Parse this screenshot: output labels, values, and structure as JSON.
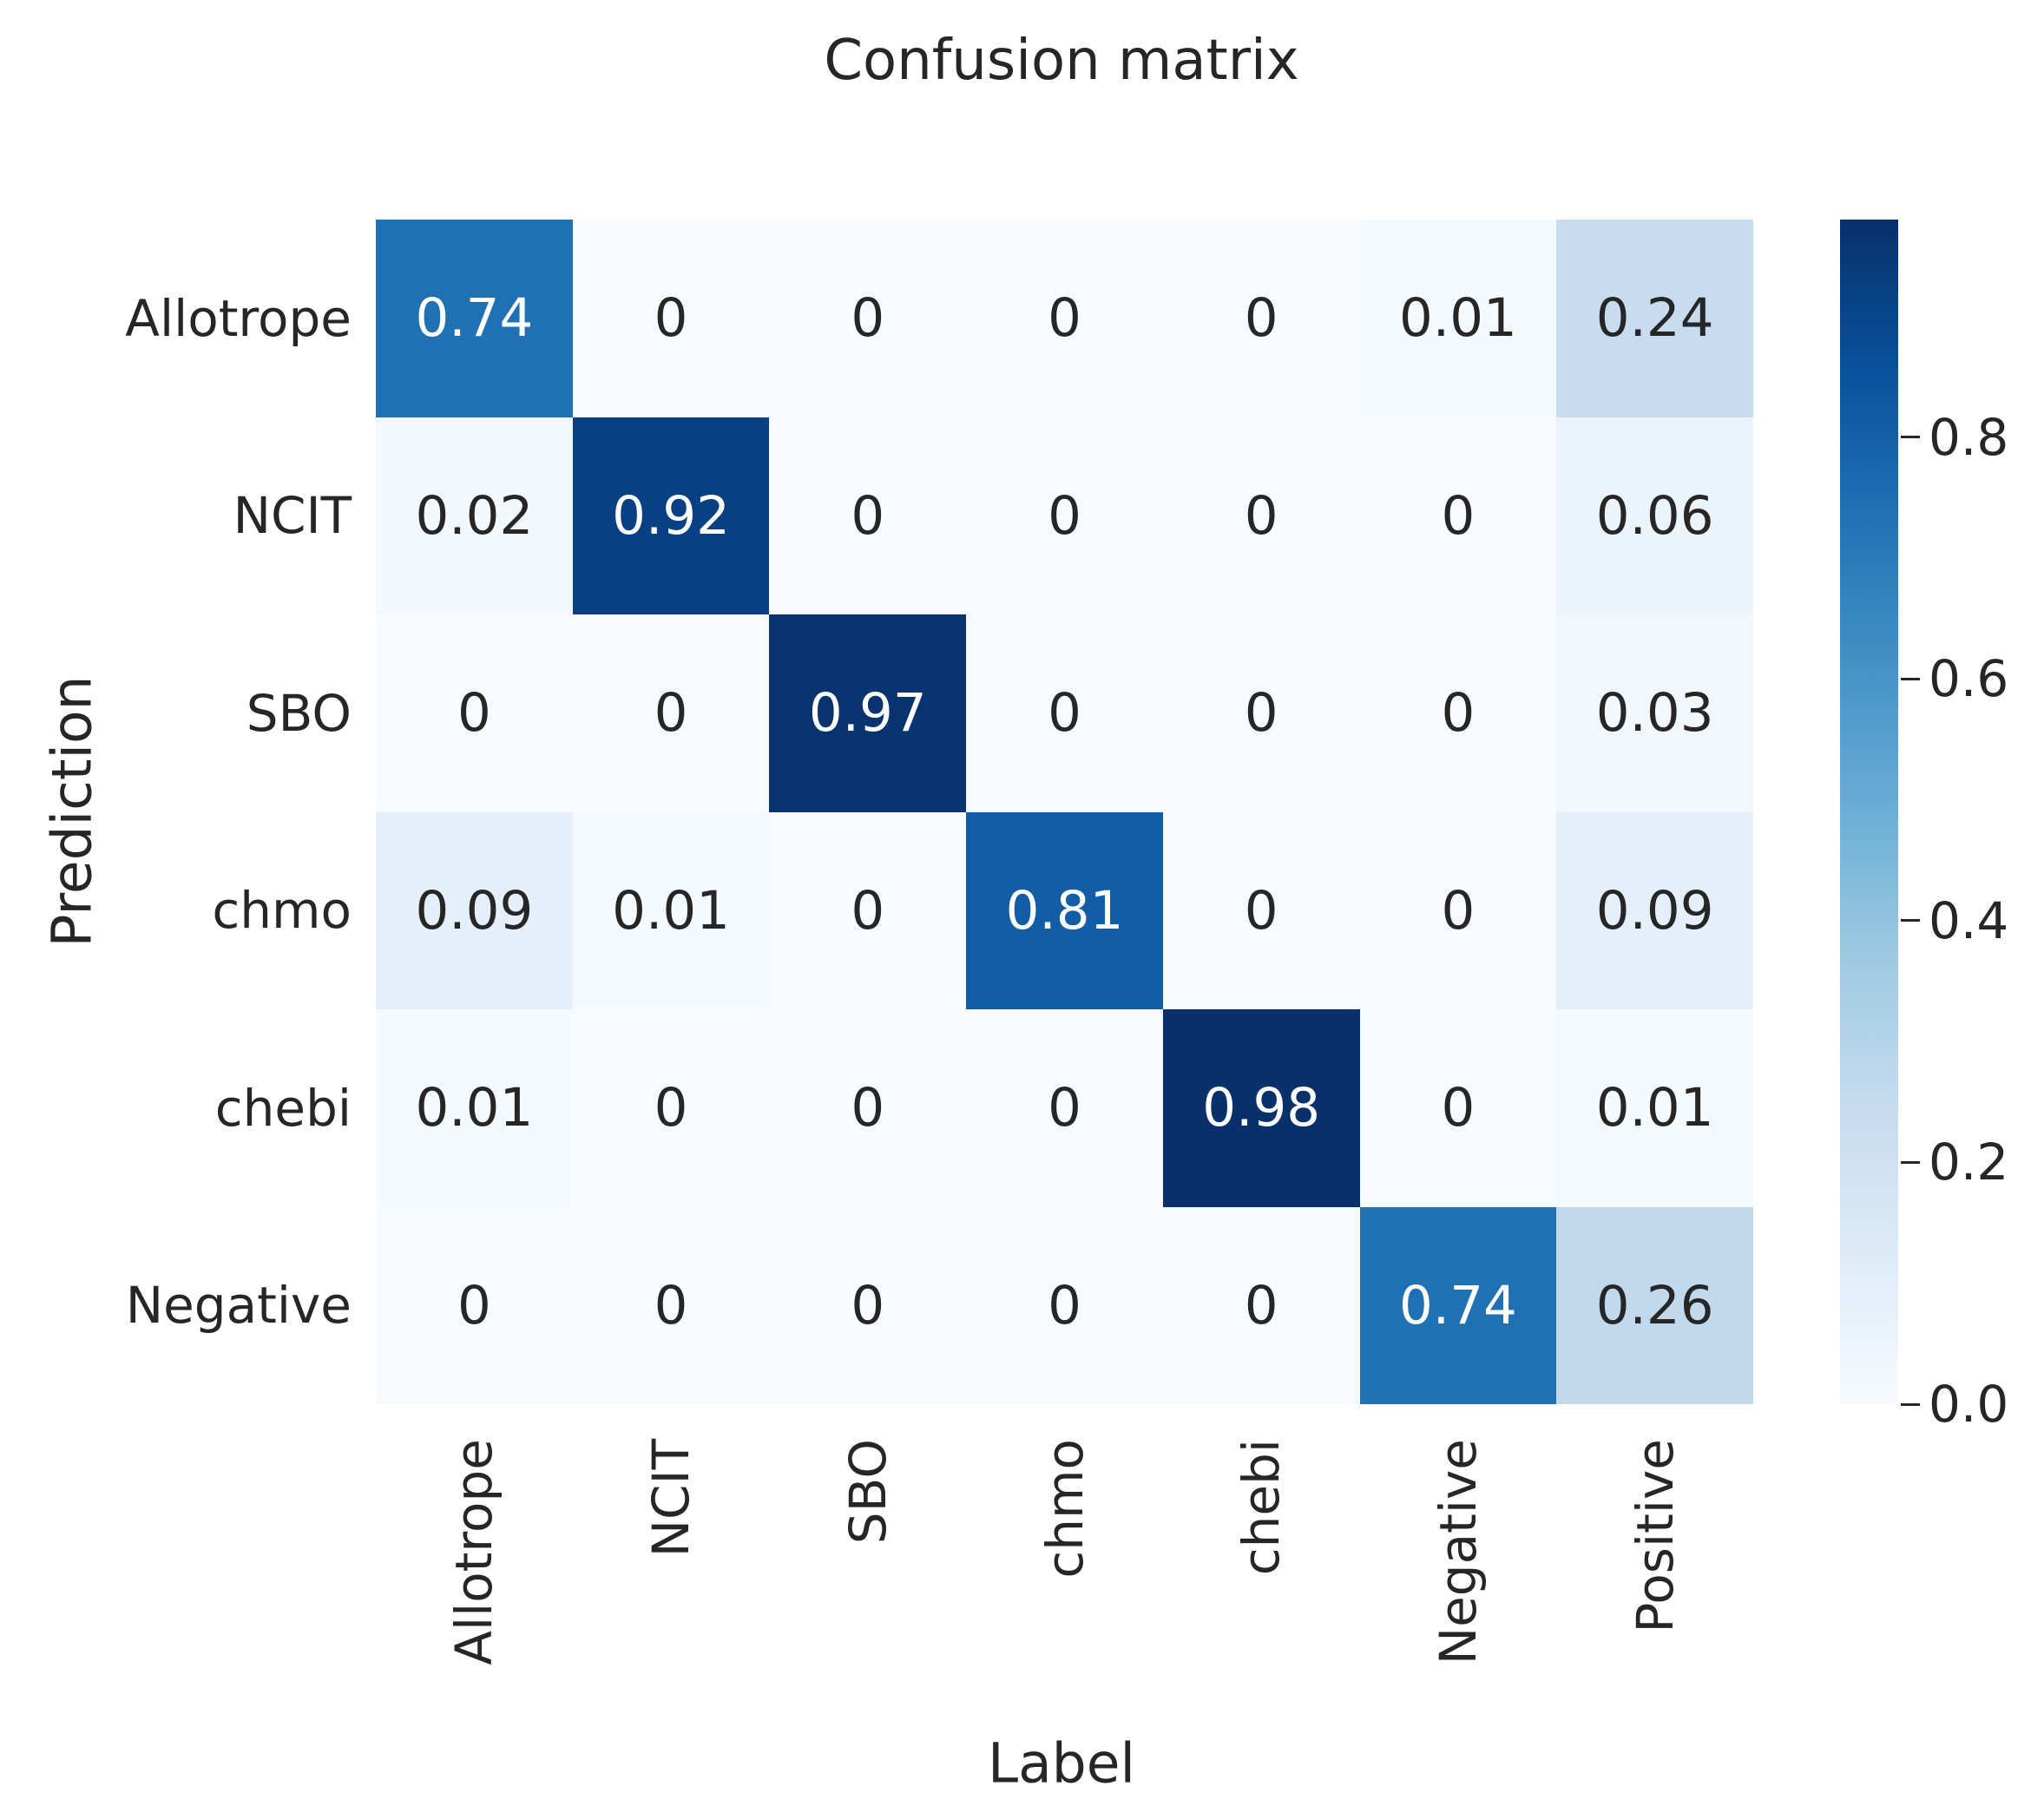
{
  "chart_data": {
    "type": "heatmap",
    "title": "Confusion matrix",
    "xlabel": "Label",
    "ylabel": "Prediction",
    "x_categories": [
      "Allotrope",
      "NCIT",
      "SBO",
      "chmo",
      "chebi",
      "Negative",
      "Positive"
    ],
    "y_categories": [
      "Allotrope",
      "NCIT",
      "SBO",
      "chmo",
      "chebi",
      "Negative"
    ],
    "matrix_display": [
      [
        "0.74",
        "0",
        "0",
        "0",
        "0",
        "0.01",
        "0.24"
      ],
      [
        "0.02",
        "0.92",
        "0",
        "0",
        "0",
        "0",
        "0.06"
      ],
      [
        "0",
        "0",
        "0.97",
        "0",
        "0",
        "0",
        "0.03"
      ],
      [
        "0.09",
        "0.01",
        "0",
        "0.81",
        "0",
        "0",
        "0.09"
      ],
      [
        "0.01",
        "0",
        "0",
        "0",
        "0.98",
        "0",
        "0.01"
      ],
      [
        "0",
        "0",
        "0",
        "0",
        "0",
        "0.74",
        "0.26"
      ]
    ],
    "colorbar_tick_labels": [
      "0.8",
      "0.6",
      "0.4",
      "0.2",
      "0.0"
    ],
    "vmin": 0.0,
    "grid": false,
    "legend_position": "right",
    "colormap_name": "Blues",
    "colormap_stops": [
      "#f7fbff",
      "#deebf7",
      "#c6dbef",
      "#9ecae1",
      "#6baed6",
      "#4292c6",
      "#2171b5",
      "#08519c",
      "#08306b"
    ],
    "text_color": "#262626",
    "annot_dark_text": "#262626",
    "annot_light_text": "#ffffff"
  }
}
